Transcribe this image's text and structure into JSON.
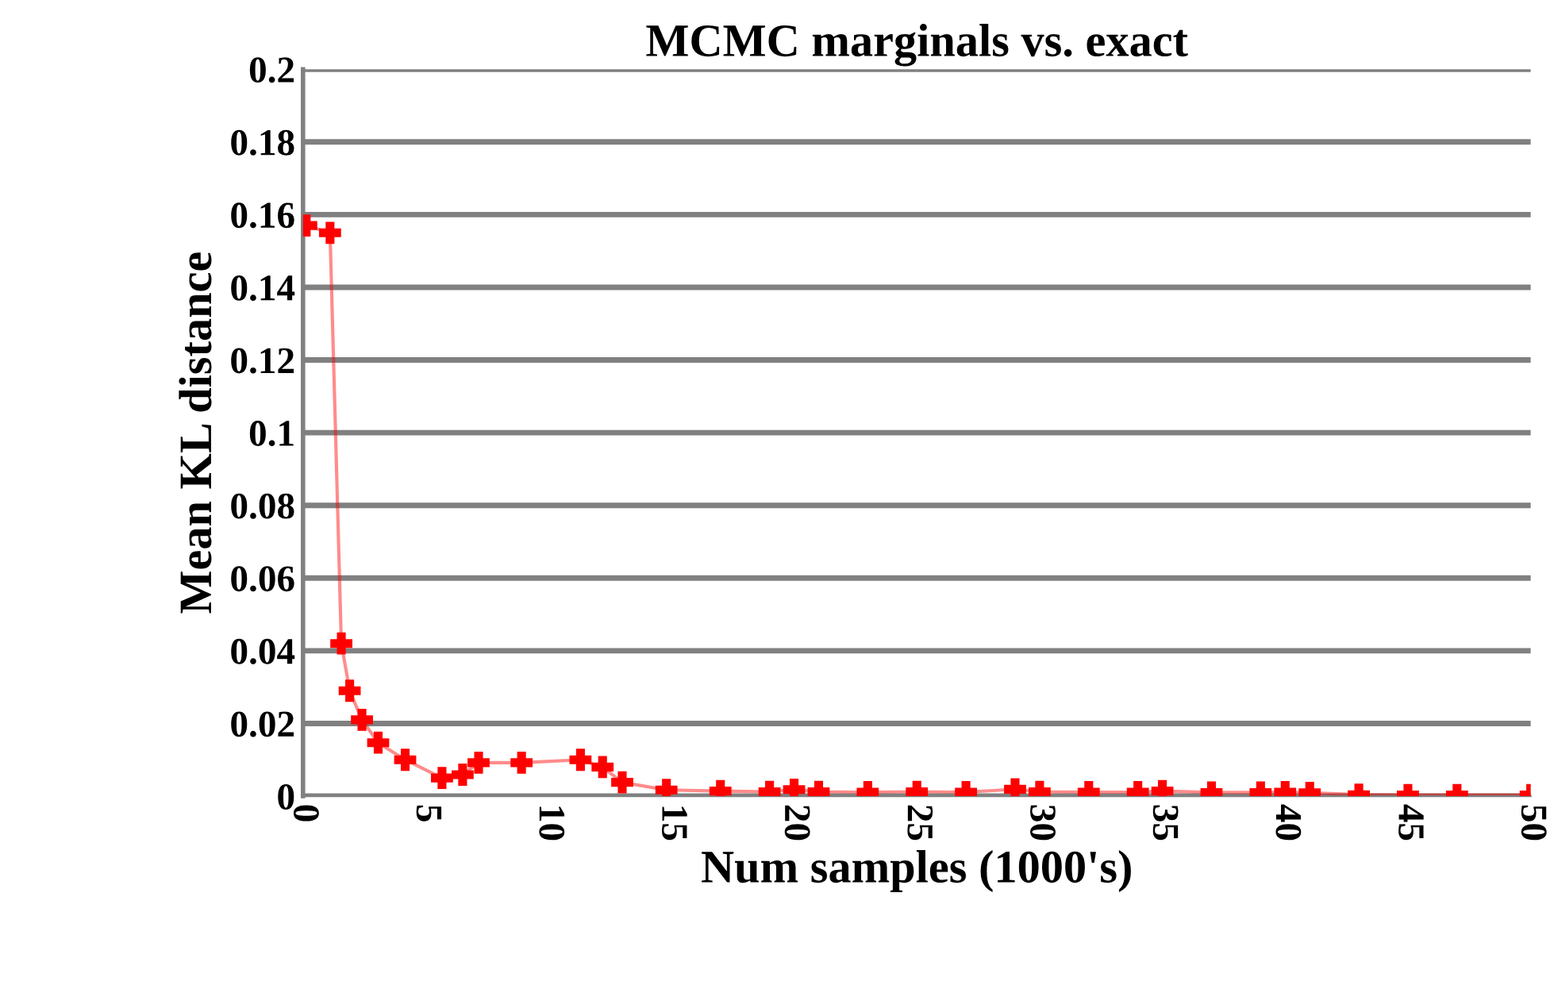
{
  "chart_data": {
    "type": "line",
    "title": "MCMC marginals vs. exact",
    "xlabel": "Num samples (1000's)",
    "ylabel": "Mean KL distance",
    "series": [
      {
        "color": "#ff0000",
        "x": [
          0.13,
          1.1,
          1.56,
          1.9,
          2.4,
          3.06,
          4.16,
          5.66,
          6.5,
          7.15,
          8.9,
          11.3,
          12.2,
          13.0,
          14.8,
          17,
          19,
          20,
          21,
          23,
          25,
          27,
          29,
          30,
          32,
          34,
          35,
          37,
          39,
          40,
          41,
          43,
          45,
          47,
          50
        ],
        "values": [
          0.157,
          0.155,
          0.042,
          0.029,
          0.021,
          0.0147,
          0.01,
          0.005,
          0.0059,
          0.0092,
          0.0092,
          0.01,
          0.008,
          0.0038,
          0.0017,
          0.0014,
          0.0012,
          0.0018,
          0.0012,
          0.0011,
          0.0012,
          0.0011,
          0.0019,
          0.0012,
          0.0011,
          0.0011,
          0.0014,
          0.001,
          0.001,
          0.0011,
          0.0009,
          0.0004,
          0.0003,
          0.0003,
          0.0003
        ]
      }
    ],
    "xlim": [
      0,
      50
    ],
    "xticks": [
      0,
      5,
      10,
      15,
      20,
      25,
      30,
      35,
      40,
      45,
      50
    ],
    "ylim": [
      0,
      0.2
    ],
    "yticks": [
      0,
      0.02,
      0.04,
      0.06,
      0.08,
      0.1,
      0.12,
      0.14,
      0.16,
      0.18,
      0.2
    ],
    "grid": "y",
    "marker": "cross",
    "line_style": "solid",
    "legend": false
  }
}
